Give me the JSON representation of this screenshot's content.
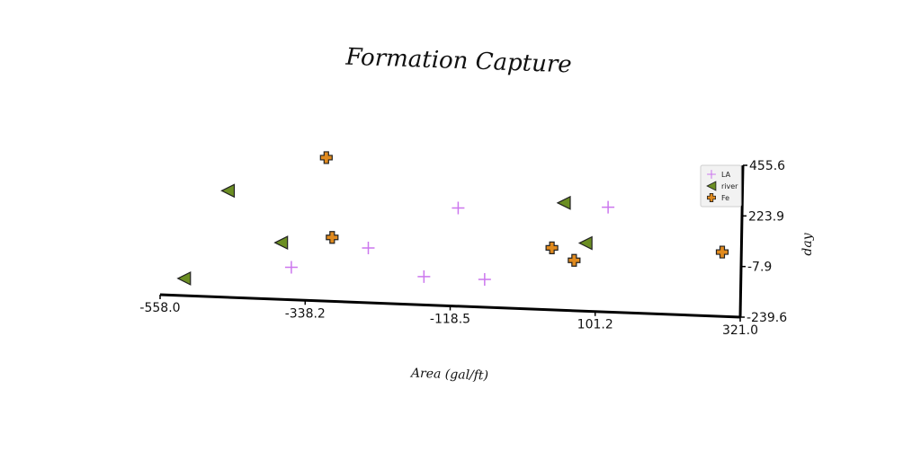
{
  "chart_data": {
    "type": "scatter",
    "title": "Formation Capture",
    "xlabel": "Area (gal/ft)",
    "ylabel": "day",
    "xlim": [
      -558.0,
      321.0
    ],
    "ylim": [
      -239.6,
      455.6
    ],
    "x_ticks": [
      "-558.0",
      "-338.2",
      "-118.5",
      "101.2",
      "321.0"
    ],
    "y_ticks": [
      "-239.6",
      "-7.9",
      "223.9",
      "455.6"
    ],
    "legend_position": "top-right",
    "grid": false,
    "series": [
      {
        "name": "LA",
        "marker": "plus",
        "color": "#cc77ee",
        "points": [
          {
            "x": -360,
            "y": -91
          },
          {
            "x": -244,
            "y": 11
          },
          {
            "x": -159,
            "y": -110
          },
          {
            "x": -109,
            "y": 210
          },
          {
            "x": -67,
            "y": -112
          },
          {
            "x": 118,
            "y": 240
          }
        ]
      },
      {
        "name": "river",
        "marker": "triangle-left",
        "color": "#6b8e23",
        "points": [
          {
            "x": -522,
            "y": -161
          },
          {
            "x": -458,
            "y": 248
          },
          {
            "x": -376,
            "y": 20
          },
          {
            "x": 51,
            "y": 252
          },
          {
            "x": 85,
            "y": 72
          }
        ]
      },
      {
        "name": "Fe",
        "marker": "plus-filled",
        "color": "#e08a1e",
        "points": [
          {
            "x": -310,
            "y": 417
          },
          {
            "x": -299,
            "y": 53
          },
          {
            "x": 34,
            "y": 44
          },
          {
            "x": 68,
            "y": -9
          },
          {
            "x": 292,
            "y": 55
          }
        ]
      }
    ]
  }
}
